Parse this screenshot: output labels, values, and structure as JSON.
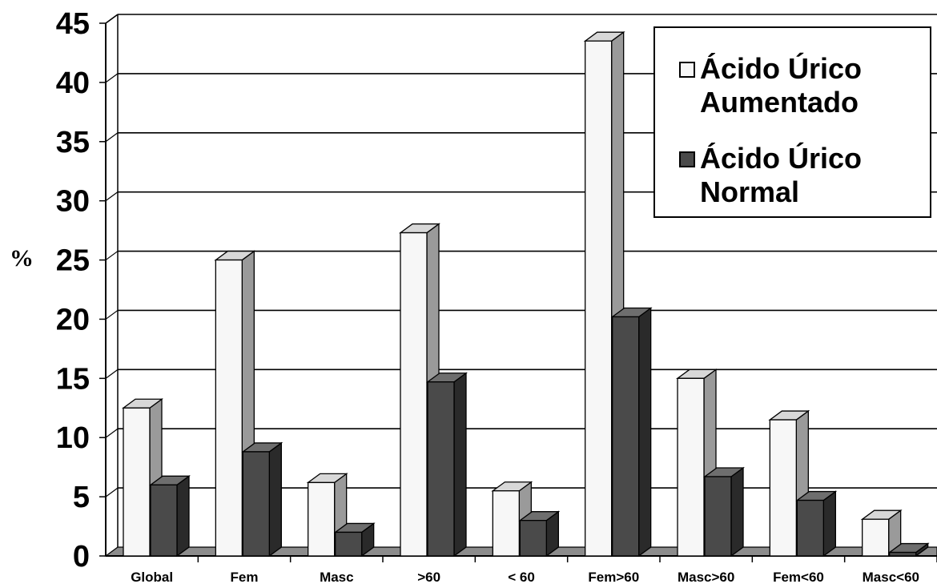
{
  "chart_data": {
    "type": "bar",
    "ylabel": "%",
    "xlabel": "",
    "ylim": [
      0,
      45
    ],
    "yticks": [
      "0",
      "5",
      "10",
      "15",
      "20",
      "25",
      "30",
      "35",
      "40",
      "45"
    ],
    "grid": true,
    "legend_position": "top-right",
    "categories": [
      "Global",
      "Fem",
      "Masc",
      ">60",
      "< 60",
      "Fem>60",
      "Masc>60",
      "Fem<60",
      "Masc<60"
    ],
    "series": [
      {
        "name": "Ácido Úrico Aumentado",
        "color": "#f7f7f7",
        "values": [
          12.5,
          25,
          6.2,
          27.3,
          5.5,
          43.5,
          15,
          11.5,
          3.1
        ]
      },
      {
        "name": "Ácido Úrico Normal",
        "color": "#4a4a4a",
        "values": [
          6,
          8.8,
          2,
          14.7,
          3,
          20.2,
          6.7,
          4.7,
          0.3
        ]
      }
    ]
  }
}
